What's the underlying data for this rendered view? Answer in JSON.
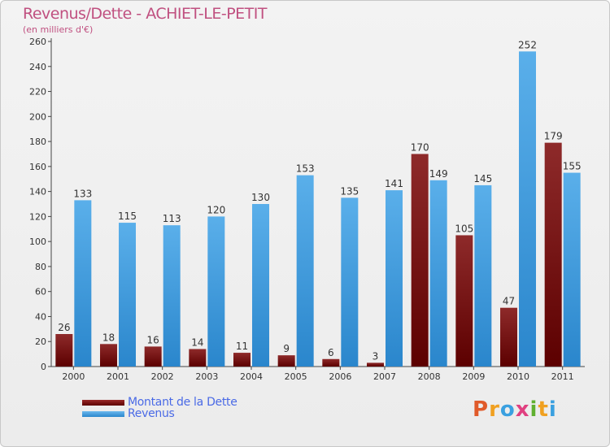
{
  "header": {
    "title": "Revenus/Dette - ACHIET-LE-PETIT",
    "subtitle": "(en milliers d'€)"
  },
  "legend": {
    "items": [
      {
        "label": "Montant de la Dette",
        "color": "#7a1010"
      },
      {
        "label": "Revenus",
        "color": "#4ea4e6"
      }
    ]
  },
  "brand": {
    "text": "Proxiti",
    "letters": [
      {
        "ch": "P",
        "color": "#e05a2a"
      },
      {
        "ch": "r",
        "color": "#f0a020"
      },
      {
        "ch": "o",
        "color": "#3aa0e0"
      },
      {
        "ch": "x",
        "color": "#e04080"
      },
      {
        "ch": "i",
        "color": "#60b030"
      },
      {
        "ch": "t",
        "color": "#f0a020"
      },
      {
        "ch": "i",
        "color": "#3aa0e0"
      }
    ]
  },
  "chart_data": {
    "type": "bar",
    "title": "Revenus/Dette - ACHIET-LE-PETIT",
    "ylabel": "(en milliers d'€)",
    "xlabel": "",
    "ylim": [
      0,
      260
    ],
    "yticks": [
      0,
      20,
      40,
      60,
      80,
      100,
      120,
      140,
      160,
      180,
      200,
      220,
      240,
      260
    ],
    "grid": false,
    "legend_position": "bottom-left",
    "categories": [
      "2000",
      "2001",
      "2002",
      "2003",
      "2004",
      "2005",
      "2006",
      "2007",
      "2008",
      "2009",
      "2010",
      "2011"
    ],
    "series": [
      {
        "name": "Montant de la Dette",
        "color": "#7a1010",
        "values": [
          26,
          18,
          16,
          14,
          11,
          9,
          6,
          3,
          170,
          105,
          47,
          179
        ]
      },
      {
        "name": "Revenus",
        "color": "#4ea4e6",
        "values": [
          133,
          115,
          113,
          120,
          130,
          153,
          135,
          141,
          149,
          145,
          252,
          155
        ]
      }
    ]
  }
}
